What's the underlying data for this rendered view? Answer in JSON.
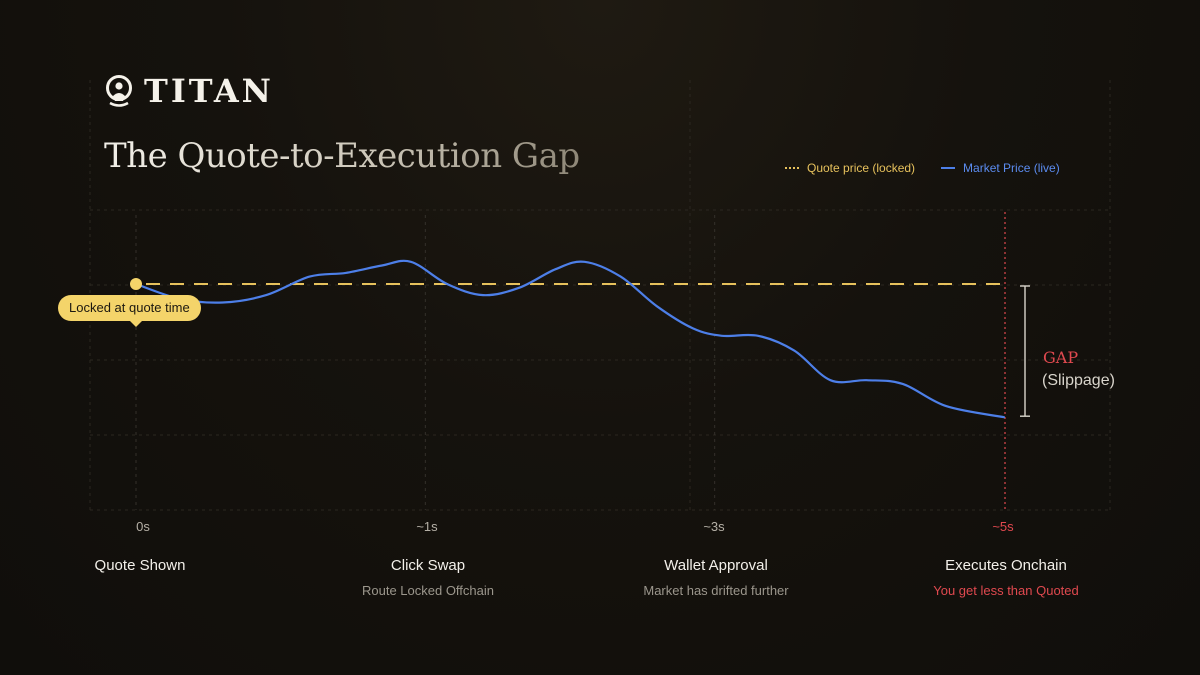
{
  "brand": {
    "name": "TITAN"
  },
  "title": "The Quote-to-Execution Gap",
  "colors": {
    "quote": "#e6c15c",
    "market": "#4d7fe8",
    "alert": "#e0494f",
    "badge": "#f4d46a"
  },
  "chart_data": {
    "type": "line",
    "title": "The Quote-to-Execution Gap",
    "xlabel": "",
    "ylabel": "",
    "xlim": [
      0,
      6
    ],
    "ylim": [
      0,
      100
    ],
    "x_ticks": [
      {
        "x": 0,
        "label": "0s"
      },
      {
        "x": 2,
        "label": "~1s"
      },
      {
        "x": 4,
        "label": "~3s"
      },
      {
        "x": 6,
        "label": "~5s"
      }
    ],
    "series": [
      {
        "name": "Market Price (live)",
        "x": [
          0,
          0.3,
          0.6,
          0.9,
          1.2,
          1.45,
          1.7,
          1.9,
          2.15,
          2.4,
          2.65,
          2.9,
          3.1,
          3.35,
          3.6,
          3.85,
          4.05,
          4.3,
          4.55,
          4.8,
          5.05,
          5.3,
          5.6,
          6.0
        ],
        "y": [
          80,
          76,
          75,
          77,
          82,
          83,
          85,
          86,
          80,
          77,
          79,
          84,
          86,
          82,
          74,
          68,
          66,
          66,
          62,
          54,
          54,
          53,
          47,
          44
        ]
      },
      {
        "name": "Quote price (locked)",
        "x": [
          0,
          6
        ],
        "y": [
          80,
          80
        ]
      }
    ],
    "legend": [
      {
        "name": "Quote price (locked)",
        "style": "dotted"
      },
      {
        "name": "Market Price (live)",
        "style": "solid"
      }
    ],
    "annotations": {
      "locked": "Locked at quote time",
      "gap": "GAP",
      "slippage": "(Slippage)"
    },
    "stages": [
      {
        "name": "Quote Shown",
        "sub": ""
      },
      {
        "name": "Click Swap",
        "sub": "Route Locked Offchain"
      },
      {
        "name": "Wallet Approval",
        "sub": "Market has drifted further"
      },
      {
        "name": "Executes Onchain",
        "sub": "You get less than Quoted"
      }
    ],
    "grid": true
  }
}
